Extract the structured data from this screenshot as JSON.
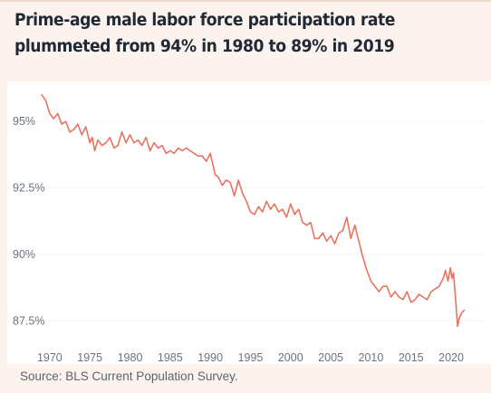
{
  "title": "Prime-age male labor force participation rate plummeted from 94% in 1980 to 89% in 2019",
  "source": "Source: BLS Current Population Survey.",
  "colors": {
    "line": "#e8735f",
    "grid": "#dde0e6",
    "axis_text": "#6b7380",
    "title": "#1f2a36",
    "background": "#fdf3ee",
    "plot_background": "#ffffff"
  },
  "chart_data": {
    "type": "line",
    "title": "Prime-age male labor force participation rate plummeted from 94% in 1980 to 89% in 2019",
    "xlabel": "",
    "ylabel": "",
    "xlim": [
      1969,
      2021.8
    ],
    "ylim": [
      86.9,
      96.3
    ],
    "x_ticks": [
      1970,
      1975,
      1980,
      1985,
      1990,
      1995,
      2000,
      2005,
      2010,
      2015,
      2020
    ],
    "x_tick_labels": [
      "1970",
      "1975",
      "1980",
      "1985",
      "1990",
      "1995",
      "2000",
      "2005",
      "2010",
      "2015",
      "2020"
    ],
    "y_ticks": [
      95,
      92.5,
      90,
      87.5
    ],
    "y_tick_labels": [
      "95%",
      "92.5%",
      "90%",
      "87.5%"
    ],
    "grid": true,
    "legend": "none",
    "series": [
      {
        "name": "",
        "x": [
          1969.0,
          1969.5,
          1970.0,
          1970.5,
          1971.0,
          1971.5,
          1972.0,
          1972.5,
          1973.0,
          1973.5,
          1974.0,
          1974.5,
          1975.0,
          1975.3,
          1975.6,
          1976.0,
          1976.5,
          1977.0,
          1977.5,
          1978.0,
          1978.5,
          1979.0,
          1979.5,
          1980.0,
          1980.5,
          1981.0,
          1981.5,
          1982.0,
          1982.5,
          1983.0,
          1983.5,
          1984.0,
          1984.5,
          1985.0,
          1985.5,
          1986.0,
          1986.5,
          1987.0,
          1987.5,
          1988.0,
          1988.5,
          1989.0,
          1989.5,
          1990.0,
          1990.3,
          1990.6,
          1991.0,
          1991.5,
          1992.0,
          1992.5,
          1993.0,
          1993.5,
          1994.0,
          1994.5,
          1995.0,
          1995.5,
          1996.0,
          1996.5,
          1997.0,
          1997.5,
          1998.0,
          1998.5,
          1999.0,
          1999.5,
          2000.0,
          2000.5,
          2001.0,
          2001.5,
          2002.0,
          2002.5,
          2003.0,
          2003.5,
          2004.0,
          2004.5,
          2005.0,
          2005.5,
          2006.0,
          2006.5,
          2007.0,
          2007.5,
          2008.0,
          2008.5,
          2009.0,
          2009.5,
          2010.0,
          2010.5,
          2011.0,
          2011.5,
          2012.0,
          2012.5,
          2013.0,
          2013.5,
          2014.0,
          2014.5,
          2015.0,
          2015.5,
          2016.0,
          2016.5,
          2017.0,
          2017.5,
          2018.0,
          2018.5,
          2019.0,
          2019.3,
          2019.6,
          2019.9,
          2020.1,
          2020.3,
          2020.5,
          2020.8,
          2021.0,
          2021.3,
          2021.6
        ],
        "values": [
          96.0,
          95.8,
          95.3,
          95.1,
          95.3,
          94.9,
          95.0,
          94.6,
          94.7,
          94.9,
          94.5,
          94.8,
          94.2,
          94.4,
          93.9,
          94.3,
          94.1,
          94.2,
          94.4,
          94.0,
          94.1,
          94.6,
          94.2,
          94.5,
          94.2,
          94.3,
          94.1,
          94.4,
          93.9,
          94.2,
          94.0,
          94.1,
          93.8,
          93.9,
          93.8,
          94.0,
          93.9,
          94.0,
          93.9,
          93.8,
          93.7,
          93.7,
          93.5,
          93.8,
          93.4,
          93.0,
          92.9,
          92.6,
          92.8,
          92.7,
          92.2,
          92.8,
          92.3,
          92.0,
          91.6,
          91.5,
          91.8,
          91.6,
          92.0,
          91.7,
          91.9,
          91.6,
          91.7,
          91.4,
          91.9,
          91.5,
          91.7,
          91.2,
          91.1,
          91.2,
          90.6,
          90.6,
          90.8,
          90.5,
          90.7,
          90.4,
          90.8,
          90.9,
          91.4,
          90.6,
          91.1,
          90.5,
          89.9,
          89.4,
          89.0,
          88.8,
          88.6,
          88.8,
          88.8,
          88.4,
          88.6,
          88.4,
          88.3,
          88.6,
          88.2,
          88.3,
          88.5,
          88.4,
          88.3,
          88.6,
          88.7,
          88.8,
          89.1,
          89.4,
          89.0,
          89.5,
          89.1,
          89.3,
          88.5,
          87.3,
          87.6,
          87.8,
          87.9
        ]
      }
    ]
  }
}
